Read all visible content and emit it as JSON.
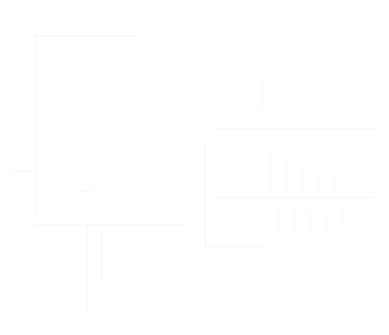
{
  "colors": {
    "background": "#ffffff",
    "faint_line": "#f3f3f3"
  },
  "text": {}
}
